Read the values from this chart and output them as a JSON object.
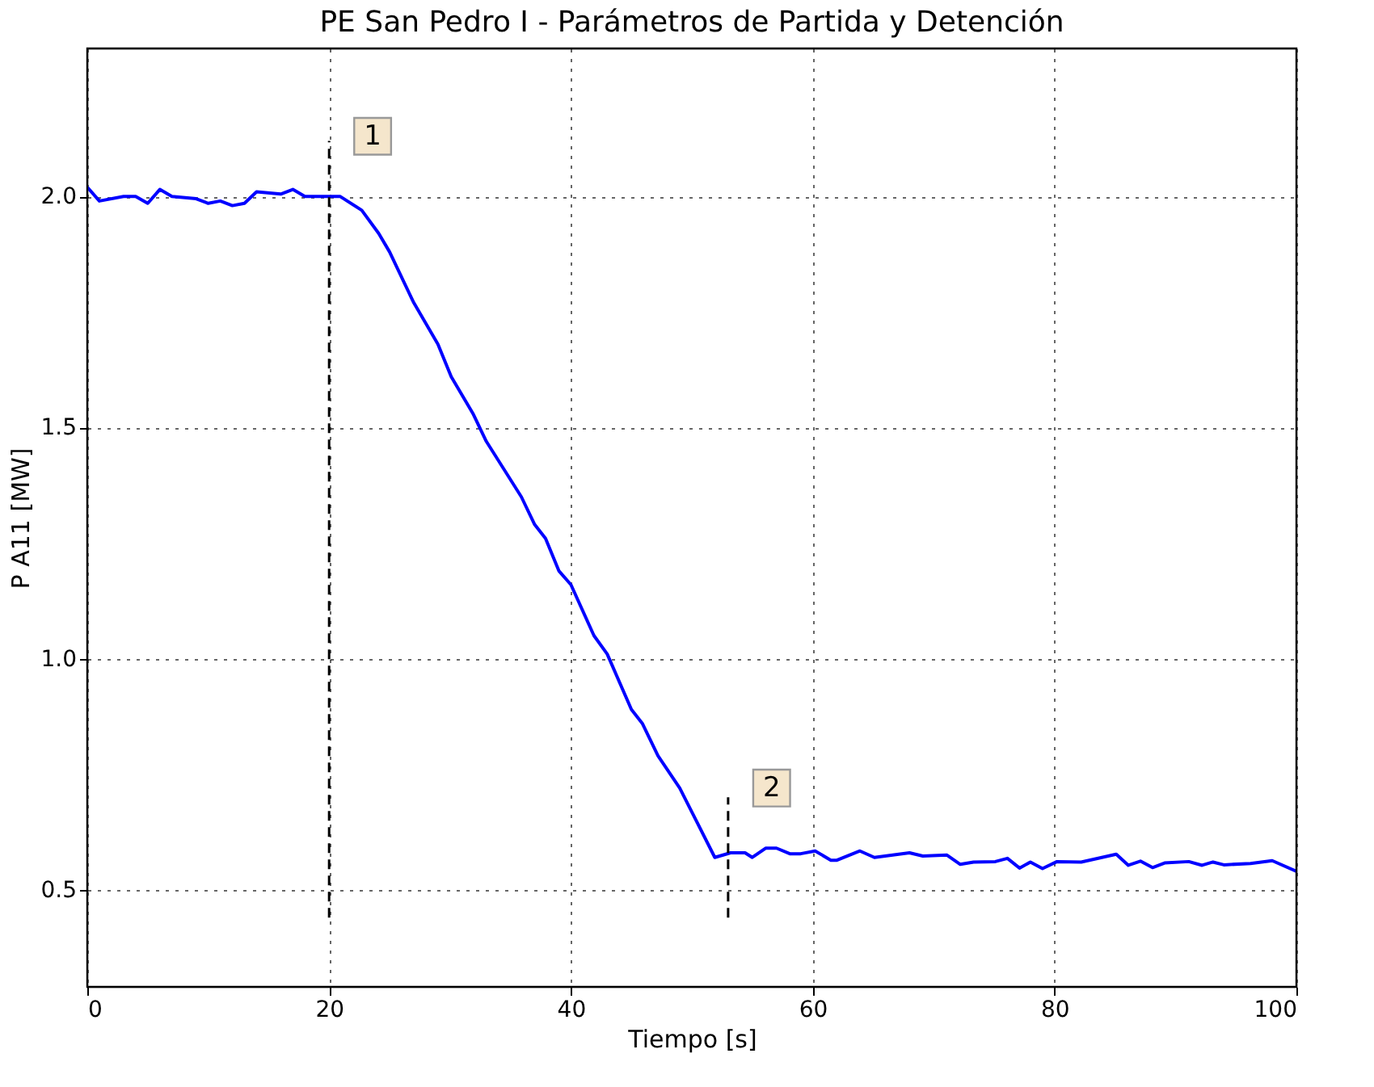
{
  "chart_data": {
    "type": "line",
    "title": "PE San Pedro I - Parámetros de Partida y Detención",
    "xlabel": "Tiempo [s]",
    "ylabel": "P A11 [MW]",
    "xlim": [
      0,
      100
    ],
    "ylim": [
      0.29,
      2.32
    ],
    "xticks": [
      0,
      20,
      40,
      60,
      80,
      100
    ],
    "yticks": [
      {
        "value": 0.5,
        "label": "0.5"
      },
      {
        "value": 1.0,
        "label": "1.0"
      },
      {
        "value": 1.5,
        "label": "1.5"
      },
      {
        "value": 2.0,
        "label": "2.0"
      }
    ],
    "grid": true,
    "line_style": "solid",
    "series": [
      {
        "color": "#0000ff",
        "x": [
          0,
          1,
          3,
          4,
          5,
          6,
          7,
          9,
          10,
          11,
          12,
          13,
          14,
          16,
          17,
          18,
          20.9,
          22.7,
          24.1,
          25.0,
          27.0,
          29.0,
          30.1,
          31.9,
          33.0,
          35.9,
          37.0,
          37.9,
          39.0,
          40.0,
          41.9,
          43.0,
          45.0,
          45.9,
          47.2,
          49.0,
          51.9,
          53.2,
          54.4,
          55.0,
          56.1,
          57.0,
          58.1,
          59.0,
          60.2,
          61.5,
          62.0,
          63.9,
          65.1,
          68.0,
          69.1,
          71.1,
          72.2,
          73.3,
          75.1,
          76.1,
          77.1,
          78.0,
          79.0,
          80.2,
          82.2,
          85.1,
          86.1,
          87.1,
          88.1,
          89.1,
          91.1,
          92.2,
          93.1,
          94.0,
          96.2,
          98.0,
          100
        ],
        "values": [
          2.02,
          1.99,
          2.0,
          2.0,
          1.985,
          2.015,
          2.0,
          1.995,
          1.985,
          1.99,
          1.98,
          1.985,
          2.01,
          2.005,
          2.015,
          2.0,
          2.0,
          1.97,
          1.92,
          1.88,
          1.77,
          1.68,
          1.61,
          1.53,
          1.47,
          1.35,
          1.29,
          1.26,
          1.19,
          1.16,
          1.05,
          1.01,
          0.89,
          0.86,
          0.79,
          0.72,
          0.57,
          0.58,
          0.58,
          0.57,
          0.59,
          0.59,
          0.578,
          0.578,
          0.584,
          0.564,
          0.564,
          0.584,
          0.57,
          0.58,
          0.573,
          0.575,
          0.555,
          0.56,
          0.561,
          0.568,
          0.547,
          0.56,
          0.546,
          0.561,
          0.56,
          0.577,
          0.553,
          0.562,
          0.548,
          0.558,
          0.561,
          0.553,
          0.56,
          0.554,
          0.557,
          0.563,
          0.54
        ]
      }
    ],
    "ref_lines": [
      {
        "axis": "x",
        "value": 20,
        "color": "#000000",
        "line_style": "dashed"
      },
      {
        "axis": "x",
        "value": 53,
        "color": "#000000",
        "line_style": "dashed"
      }
    ],
    "annotations": [
      {
        "text": "1",
        "x": 23.6,
        "y": 2.13
      },
      {
        "text": "2",
        "x": 56.6,
        "y": 0.72
      }
    ]
  }
}
